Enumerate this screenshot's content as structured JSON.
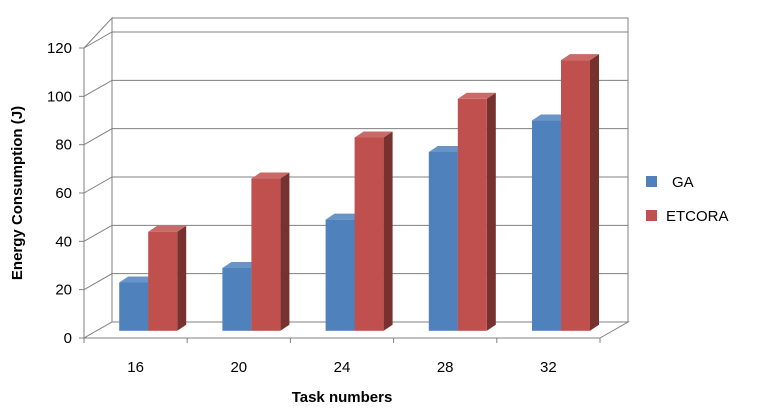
{
  "chart_data": {
    "type": "bar",
    "title": "",
    "xlabel": "Task numbers",
    "ylabel": "Energy Consumption (J)",
    "categories": [
      "16",
      "20",
      "24",
      "28",
      "32"
    ],
    "series": [
      {
        "name": "GA",
        "values": [
          20,
          26,
          46,
          74,
          87
        ],
        "color": "#4f81bd"
      },
      {
        "name": "ETCORA",
        "values": [
          41,
          63,
          80,
          96,
          112
        ],
        "color": "#c0504d"
      }
    ],
    "ylim": [
      0,
      120
    ],
    "yticks": [
      "0",
      "20",
      "40",
      "60",
      "80",
      "100",
      "120"
    ],
    "grid": true,
    "legend_position": "right",
    "style": "3d-clustered-column"
  }
}
